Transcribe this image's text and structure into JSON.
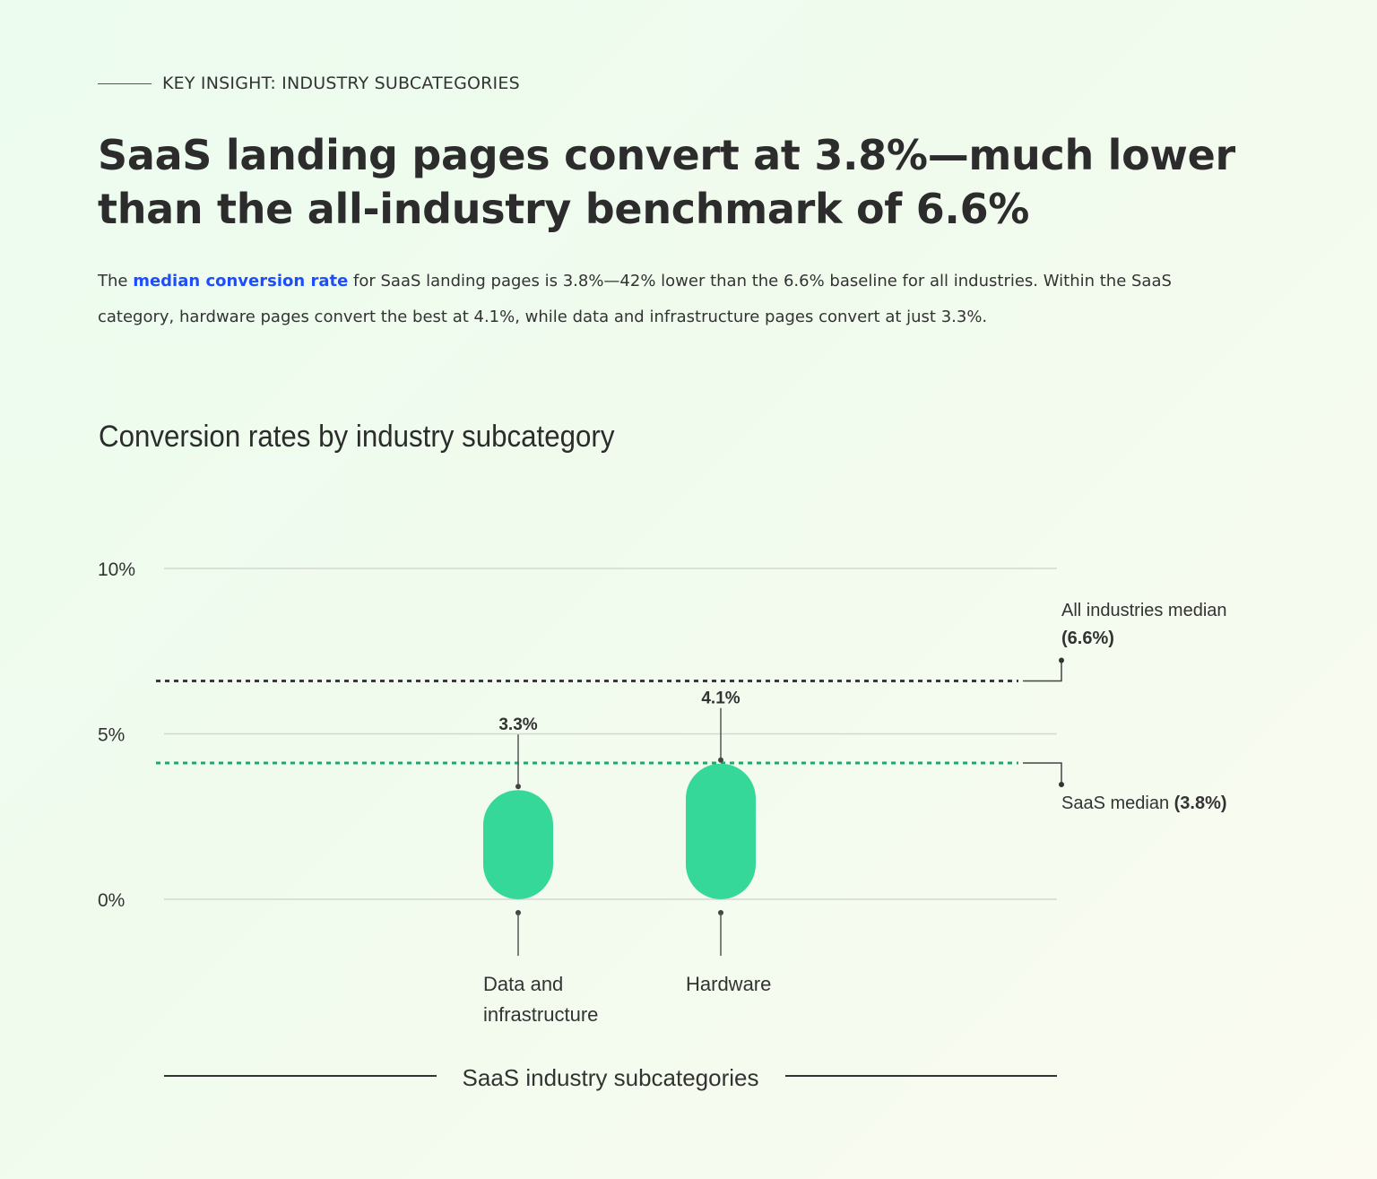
{
  "eyebrow": "KEY INSIGHT: INDUSTRY SUBCATEGORIES",
  "headline": "SaaS landing pages convert at 3.8%—much lower than the all-industry benchmark of 6.6%",
  "lead": {
    "prefix": "The ",
    "link": "median conversion rate",
    "suffix": " for SaaS landing pages is 3.8%—42% lower than the 6.6% baseline for all industries. Within the SaaS category, hardware pages convert the best at 4.1%, while data and infrastructure pages convert at just 3.3%."
  },
  "colors": {
    "bar": "#36d899",
    "saas_line": "#1fa86a",
    "all_line": "#3a3a3a",
    "link": "#1f4cff"
  },
  "chart_data": {
    "type": "bar",
    "title": "Conversion rates by industry subcategory",
    "xlabel": "SaaS industry subcategories",
    "ylim": [
      0,
      10
    ],
    "yticks": [
      {
        "value": 0,
        "label": "0%"
      },
      {
        "value": 5,
        "label": "5%"
      },
      {
        "value": 10,
        "label": "10%"
      }
    ],
    "grid": true,
    "categories": [
      "Data and infrastructure",
      "Hardware"
    ],
    "category_lines": [
      [
        "Data and",
        "infrastructure"
      ],
      [
        "Hardware"
      ]
    ],
    "values": [
      3.3,
      4.1
    ],
    "data_labels": [
      "3.3%",
      "4.1%"
    ],
    "reference_lines": [
      {
        "label": "All industries median",
        "value_label": "(6.6%)",
        "value": 6.6,
        "style": "dotted-dark"
      },
      {
        "label": "SaaS median",
        "value_label": "(3.8%)",
        "value": 3.8,
        "style": "dotted-green"
      }
    ]
  }
}
